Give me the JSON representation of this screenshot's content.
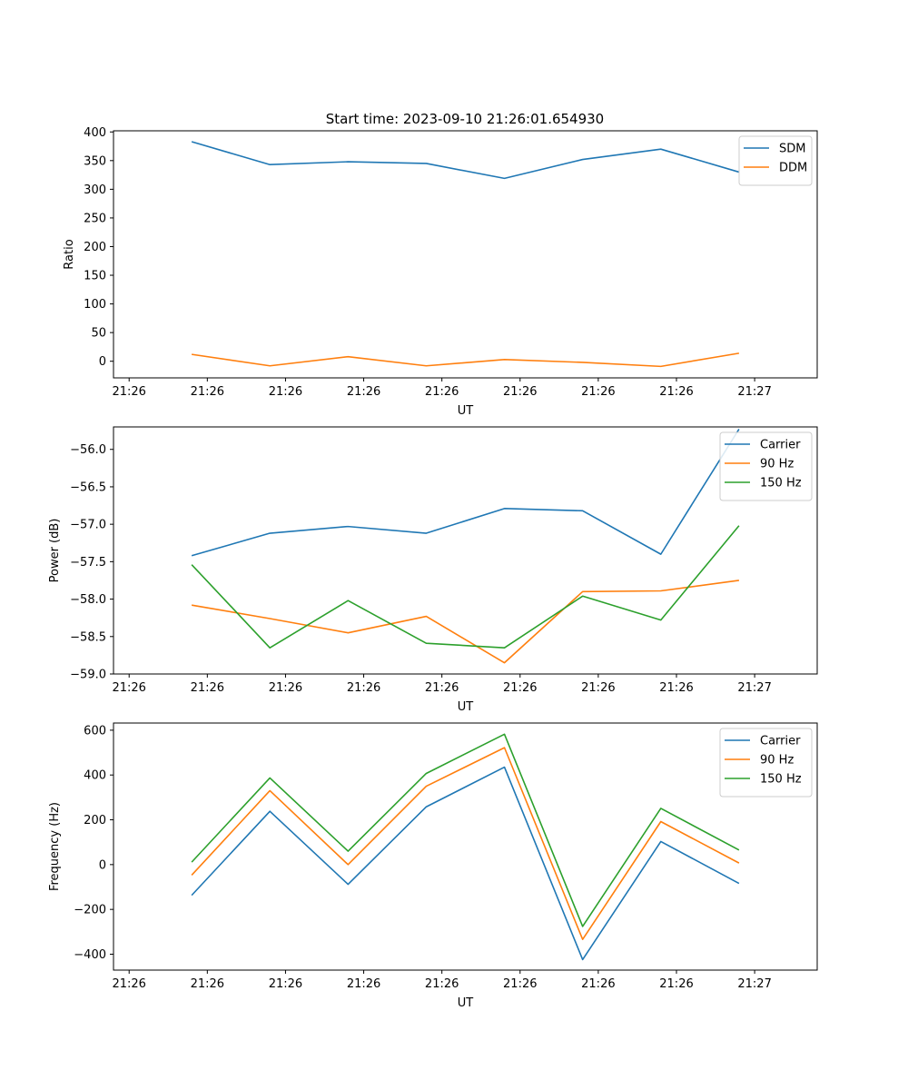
{
  "figure": {
    "suptitle": "Start time: 2023-09-10 21:26:01.654930"
  },
  "chart_data": [
    {
      "type": "line",
      "title": "Start time: 2023-09-10 21:26:01.654930",
      "xlabel": "UT",
      "ylabel": "Ratio",
      "xlim": [
        0,
        9
      ],
      "ylim": [
        -29,
        402
      ],
      "x_ticks": [
        0.2,
        1.2,
        2.2,
        3.2,
        4.2,
        5.2,
        6.2,
        7.2,
        8.2
      ],
      "x_tick_labels": [
        "21:26",
        "21:26",
        "21:26",
        "21:26",
        "21:26",
        "21:26",
        "21:26",
        "21:26",
        "21:27"
      ],
      "y_ticks": [
        0,
        50,
        100,
        150,
        200,
        250,
        300,
        350,
        400
      ],
      "y_tick_labels": [
        "0",
        "50",
        "100",
        "150",
        "200",
        "250",
        "300",
        "350",
        "400"
      ],
      "x": [
        1,
        2,
        3,
        4,
        5,
        6,
        7,
        8
      ],
      "series": [
        {
          "name": "SDM",
          "color": "#1f77b4",
          "values": [
            383,
            343,
            348,
            345,
            319,
            352,
            370,
            330
          ]
        },
        {
          "name": "DDM",
          "color": "#ff7f0e",
          "values": [
            12,
            -8,
            8,
            -8,
            3,
            -2,
            -9,
            14
          ]
        }
      ],
      "legend": "upper-right"
    },
    {
      "type": "line",
      "title": "",
      "xlabel": "UT",
      "ylabel": "Power (dB)",
      "xlim": [
        0,
        9
      ],
      "ylim": [
        -59.0,
        -55.7
      ],
      "x_ticks": [
        0.2,
        1.2,
        2.2,
        3.2,
        4.2,
        5.2,
        6.2,
        7.2,
        8.2
      ],
      "x_tick_labels": [
        "21:26",
        "21:26",
        "21:26",
        "21:26",
        "21:26",
        "21:26",
        "21:26",
        "21:26",
        "21:27"
      ],
      "y_ticks": [
        -59.0,
        -58.5,
        -58.0,
        -57.5,
        -57.0,
        -56.5,
        -56.0
      ],
      "y_tick_labels": [
        "−59.0",
        "−58.5",
        "−58.0",
        "−57.5",
        "−57.0",
        "−56.5",
        "−56.0"
      ],
      "x": [
        1,
        2,
        3,
        4,
        5,
        6,
        7,
        8
      ],
      "series": [
        {
          "name": "Carrier",
          "color": "#1f77b4",
          "values": [
            -57.42,
            -57.12,
            -57.03,
            -57.12,
            -56.79,
            -56.82,
            -57.4,
            -55.73
          ]
        },
        {
          "name": "90 Hz",
          "color": "#ff7f0e",
          "values": [
            -58.08,
            -58.26,
            -58.45,
            -58.23,
            -58.85,
            -57.9,
            -57.89,
            -57.75
          ]
        },
        {
          "name": "150 Hz",
          "color": "#2ca02c",
          "values": [
            -57.54,
            -58.65,
            -58.02,
            -58.59,
            -58.65,
            -57.96,
            -58.28,
            -57.02
          ]
        }
      ],
      "legend": "upper-right"
    },
    {
      "type": "line",
      "title": "",
      "xlabel": "UT",
      "ylabel": "Frequency (Hz)",
      "xlim": [
        0,
        9
      ],
      "ylim": [
        -471,
        632
      ],
      "x_ticks": [
        0.2,
        1.2,
        2.2,
        3.2,
        4.2,
        5.2,
        6.2,
        7.2,
        8.2
      ],
      "x_tick_labels": [
        "21:26",
        "21:26",
        "21:26",
        "21:26",
        "21:26",
        "21:26",
        "21:26",
        "21:26",
        "21:27"
      ],
      "y_ticks": [
        -400,
        -200,
        0,
        200,
        400,
        600
      ],
      "y_tick_labels": [
        "−400",
        "−200",
        "0",
        "200",
        "400",
        "600"
      ],
      "x": [
        1,
        2,
        3,
        4,
        5,
        6,
        7,
        8
      ],
      "series": [
        {
          "name": "Carrier",
          "color": "#1f77b4",
          "values": [
            -137,
            238,
            -88,
            258,
            435,
            -424,
            103,
            -84
          ]
        },
        {
          "name": "90 Hz",
          "color": "#ff7f0e",
          "values": [
            -47,
            330,
            0,
            350,
            522,
            -334,
            192,
            7
          ]
        },
        {
          "name": "150 Hz",
          "color": "#2ca02c",
          "values": [
            11,
            387,
            60,
            407,
            582,
            -276,
            251,
            65
          ]
        }
      ],
      "legend": "upper-right"
    }
  ]
}
